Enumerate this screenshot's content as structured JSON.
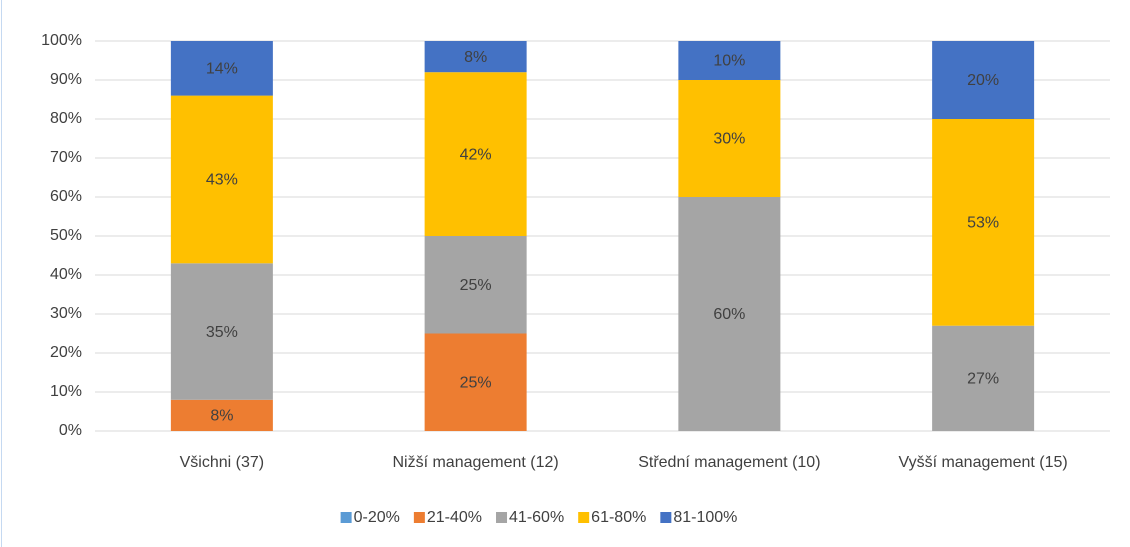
{
  "chart_data": {
    "type": "stacked_bar",
    "categories": [
      "Všichni (37)",
      "Nižší management (12)",
      "Střední management (10)",
      "Vyšší management (15)"
    ],
    "series": [
      {
        "name": "0-20%",
        "color": "#5b9bd5",
        "values": [
          0,
          0,
          0,
          0
        ],
        "value_labels": [
          null,
          null,
          null,
          null
        ]
      },
      {
        "name": "21-40%",
        "color": "#ed7d31",
        "values": [
          8,
          25,
          0,
          0
        ],
        "value_labels": [
          "8%",
          "25%",
          null,
          null
        ]
      },
      {
        "name": "41-60%",
        "color": "#a5a5a5",
        "values": [
          35,
          25,
          60,
          27
        ],
        "value_labels": [
          "35%",
          "25%",
          "60%",
          "27%"
        ]
      },
      {
        "name": "61-80%",
        "color": "#ffc000",
        "values": [
          43,
          42,
          30,
          53
        ],
        "value_labels": [
          "43%",
          "42%",
          "30%",
          "53%"
        ]
      },
      {
        "name": "81-100%",
        "color": "#4472c4",
        "values": [
          14,
          8,
          10,
          20
        ],
        "value_labels": [
          "14%",
          "8%",
          "10%",
          "20%"
        ]
      }
    ],
    "ylim": [
      0,
      100
    ],
    "yticks": [
      {
        "value": 0,
        "label": "0%"
      },
      {
        "value": 10,
        "label": "10%"
      },
      {
        "value": 20,
        "label": "20%"
      },
      {
        "value": 30,
        "label": "30%"
      },
      {
        "value": 40,
        "label": "40%"
      },
      {
        "value": 50,
        "label": "50%"
      },
      {
        "value": 60,
        "label": "60%"
      },
      {
        "value": 70,
        "label": "70%"
      },
      {
        "value": 80,
        "label": "80%"
      },
      {
        "value": 90,
        "label": "90%"
      },
      {
        "value": 100,
        "label": "100%"
      }
    ],
    "grid": true,
    "legend": "bottom"
  }
}
